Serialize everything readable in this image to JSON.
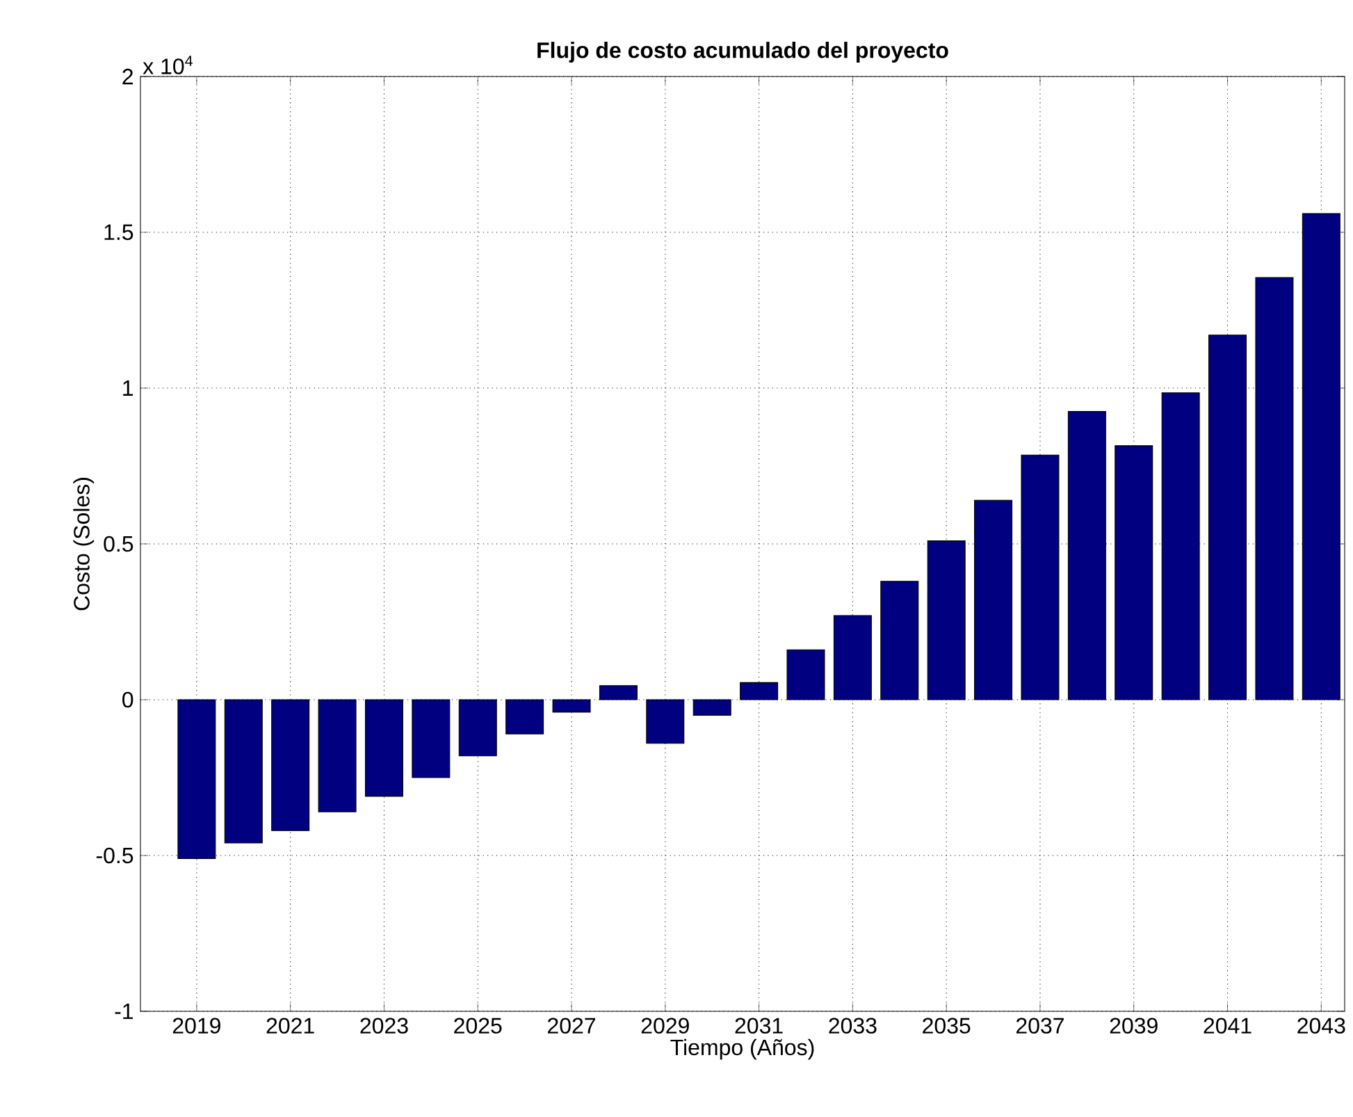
{
  "chart_data": {
    "type": "bar",
    "title": "Flujo de costo acumulado del proyecto",
    "xlabel": "Tiempo (Años)",
    "ylabel": "Costo (Soles)",
    "annotations": [
      "x 10$^{4}$"
    ],
    "x": [
      2019,
      2020,
      2021,
      2022,
      2023,
      2024,
      2025,
      2026,
      2027,
      2028,
      2029,
      2030,
      2031,
      2032,
      2033,
      2034,
      2035,
      2036,
      2037,
      2038,
      2039,
      2040,
      2041,
      2042,
      2043
    ],
    "values": [
      -0.51,
      -0.46,
      -0.42,
      -0.36,
      -0.31,
      -0.25,
      -0.18,
      -0.11,
      -0.04,
      0.045,
      -0.14,
      -0.05,
      0.055,
      0.16,
      0.27,
      0.38,
      0.51,
      0.64,
      0.785,
      0.925,
      0.815,
      0.985,
      1.17,
      1.355,
      1.56
    ],
    "color": "#000080",
    "xlim": [
      2017.8,
      2043.5
    ],
    "xticks": [
      2019,
      2021,
      2023,
      2025,
      2027,
      2029,
      2031,
      2033,
      2035,
      2037,
      2039,
      2041,
      2043
    ],
    "ylim": [
      -1,
      2
    ],
    "yticks": [
      -1,
      -0.5,
      0,
      0.5,
      1,
      1.5,
      2
    ],
    "grid": true
  }
}
